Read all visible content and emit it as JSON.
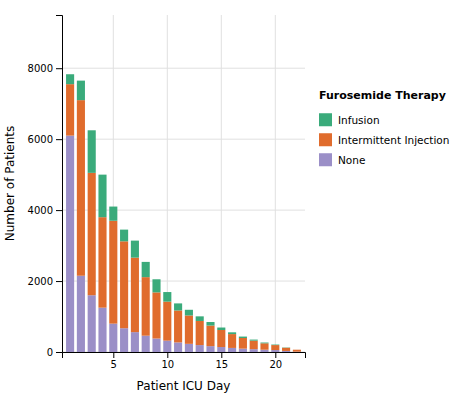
{
  "chart_data": {
    "type": "bar",
    "stacked": true,
    "x": [
      1,
      2,
      3,
      4,
      5,
      6,
      7,
      8,
      9,
      10,
      11,
      12,
      13,
      14,
      15,
      16,
      17,
      18,
      19,
      20,
      21,
      22
    ],
    "series": [
      {
        "name": "None",
        "color": "#9b8fc7",
        "values": [
          6100,
          2150,
          1600,
          1250,
          800,
          670,
          560,
          460,
          380,
          320,
          270,
          230,
          195,
          165,
          140,
          115,
          95,
          80,
          65,
          55,
          30,
          10
        ]
      },
      {
        "name": "Intermittent Injection",
        "color": "#e06c2d",
        "values": [
          1450,
          4950,
          3450,
          2550,
          2900,
          2450,
          2100,
          1650,
          1300,
          1100,
          900,
          800,
          680,
          580,
          480,
          390,
          300,
          240,
          180,
          140,
          90,
          55
        ]
      },
      {
        "name": "Infusion",
        "color": "#3aab7b",
        "values": [
          280,
          550,
          1200,
          1200,
          400,
          330,
          480,
          430,
          370,
          270,
          200,
          160,
          130,
          100,
          70,
          50,
          40,
          30,
          22,
          15,
          8,
          0
        ]
      }
    ],
    "xlabel": "Patient ICU Day",
    "ylabel": "Number of Patients",
    "xlim": [
      0.25,
      22.75
    ],
    "xticks": [
      5,
      10,
      15,
      20
    ],
    "ylim": [
      0,
      9500
    ],
    "yticks": [
      0,
      2000,
      4000,
      6000,
      8000
    ],
    "grid": true,
    "legend": "right",
    "legend_title": "Furosemide Therapy"
  }
}
